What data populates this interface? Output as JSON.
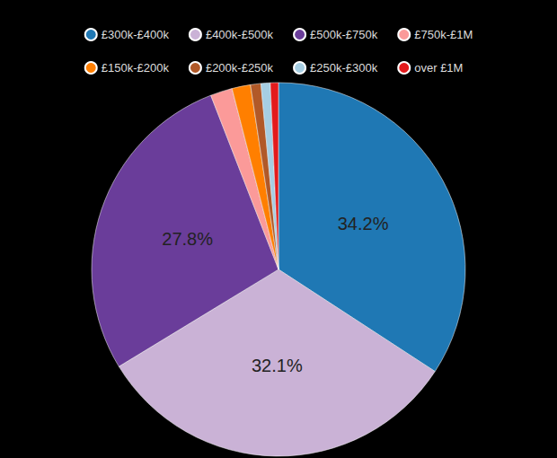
{
  "chart_data": {
    "type": "pie",
    "categories": [
      "£300k-£400k",
      "£400k-£500k",
      "£500k-£750k",
      "£750k-£1M",
      "£150k-£200k",
      "£200k-£250k",
      "£250k-£300k",
      "over £1M"
    ],
    "values": [
      34.2,
      32.1,
      27.8,
      1.9,
      1.6,
      0.9,
      0.8,
      0.7
    ],
    "value_labels": [
      "34.2%",
      "32.1%",
      "27.8%",
      null,
      null,
      null,
      null,
      null
    ],
    "colors": [
      "#1f78b4",
      "#cab2d6",
      "#6a3d9a",
      "#fb9a99",
      "#ff7f00",
      "#b15928",
      "#a6cee3",
      "#e31a1c"
    ],
    "data_labels": true,
    "legend": "top"
  }
}
